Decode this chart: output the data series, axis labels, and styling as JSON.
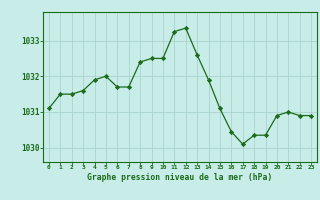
{
  "x": [
    0,
    1,
    2,
    3,
    4,
    5,
    6,
    7,
    8,
    9,
    10,
    11,
    12,
    13,
    14,
    15,
    16,
    17,
    18,
    19,
    20,
    21,
    22,
    23
  ],
  "y": [
    1031.1,
    1031.5,
    1031.5,
    1031.6,
    1031.9,
    1032.0,
    1031.7,
    1031.7,
    1032.4,
    1032.5,
    1032.5,
    1033.25,
    1033.35,
    1032.6,
    1031.9,
    1031.1,
    1030.45,
    1030.1,
    1030.35,
    1030.35,
    1030.9,
    1031.0,
    1030.9,
    1030.9
  ],
  "line_color": "#1a6b1a",
  "marker": "D",
  "marker_size": 2.2,
  "bg_color": "#c8ece8",
  "grid_color": "#a8d4cc",
  "border_color": "#1a6b1a",
  "xlabel": "Graphe pression niveau de la mer (hPa)",
  "ylabel_ticks": [
    1030,
    1031,
    1032,
    1033
  ],
  "ylim": [
    1029.6,
    1033.8
  ],
  "xlim": [
    -0.5,
    23.5
  ]
}
